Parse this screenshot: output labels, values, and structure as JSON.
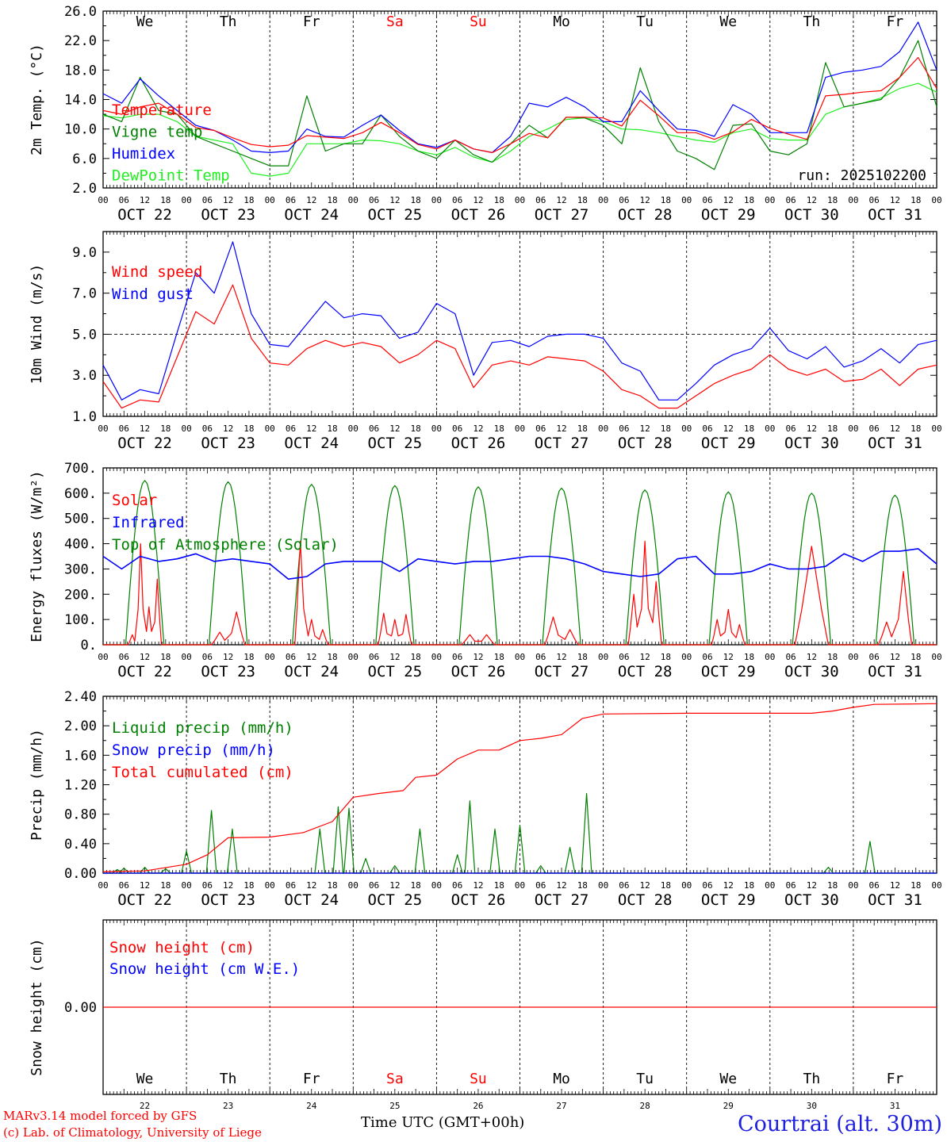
{
  "colors": {
    "red": "#ff0000",
    "green": "#008000",
    "blue": "#0000ff",
    "lightgreen": "#22ee22",
    "black": "#000000"
  },
  "footer": {
    "model": "MARv3.14 model forced by GFS",
    "copyright": "(c) Lab. of Climatology, University of Liege",
    "time_label": "Time UTC (GMT+00h)",
    "station": "Courtrai (alt. 30m)"
  },
  "chart_data": [
    {
      "id": "temp",
      "type": "line",
      "ylabel": "2m Temp. (°C)",
      "ylim": [
        2,
        26
      ],
      "yticks": [
        "2.0",
        "6.0",
        "10.0",
        "14.0",
        "18.0",
        "22.0",
        "26.0"
      ],
      "annotation": "run: 2025102200",
      "legend": [
        {
          "text": "Temperature",
          "color": "#ff0000"
        },
        {
          "text": "Vigne temp",
          "color": "#008000"
        },
        {
          "text": "Humidex",
          "color": "#0000ff"
        },
        {
          "text": "DewPoint Temp",
          "color": "#22ee22"
        }
      ],
      "series_points_per_day": 4,
      "series": [
        {
          "name": "Temperature",
          "color": "#ff0000",
          "values": [
            12.5,
            12,
            13,
            13.5,
            12,
            10.2,
            9.8,
            8.8,
            7.9,
            7.6,
            7.8,
            9.1,
            8.9,
            8.7,
            9.5,
            10.9,
            9.5,
            7.9,
            7.3,
            8.5,
            7.3,
            6.8,
            8,
            9.4,
            8.8,
            11.6,
            11.6,
            11.5,
            10.4,
            13.9,
            11.8,
            9.5,
            9.5,
            8.6,
            9.6,
            11.3,
            10.1,
            9.3,
            8.6,
            14.5,
            14.7,
            15,
            15.2,
            17,
            19.7,
            15.5
          ]
        },
        {
          "name": "Vigne temp",
          "color": "#008000",
          "values": [
            12,
            11,
            17,
            12.5,
            12,
            9,
            8,
            7,
            6,
            5,
            5,
            14.5,
            7,
            8,
            8,
            11.9,
            9,
            7,
            6,
            8.5,
            6.5,
            5.5,
            8,
            10.5,
            8.8,
            11.6,
            11.5,
            10.5,
            8,
            18.3,
            11,
            7,
            6,
            4.5,
            10.5,
            10.7,
            7,
            6.5,
            8,
            19,
            13,
            13.5,
            14,
            17,
            22,
            13
          ]
        },
        {
          "name": "Humidex",
          "color": "#0000ff",
          "values": [
            14.8,
            13.5,
            16.8,
            14.5,
            12.5,
            10.5,
            9.8,
            8.5,
            7,
            6.8,
            7,
            10,
            9,
            8.9,
            10.5,
            11.9,
            9.8,
            8,
            7.5,
            8.5,
            7.3,
            6.8,
            9,
            13.5,
            13,
            14.3,
            13,
            11,
            11,
            15.2,
            12.5,
            10,
            9.8,
            9,
            13.3,
            12,
            9.5,
            9.5,
            9.5,
            17,
            17.7,
            18,
            18.5,
            20.5,
            24.5,
            18
          ]
        },
        {
          "name": "DewPoint Temp",
          "color": "#22ee22",
          "values": [
            11.8,
            11.5,
            12,
            12,
            11,
            9,
            8.5,
            8,
            4,
            3.6,
            4,
            8,
            8,
            8,
            8.5,
            8.4,
            8,
            7,
            6.5,
            7.5,
            6.2,
            5.5,
            7,
            9,
            10,
            11.3,
            11.5,
            11,
            10,
            9.9,
            9.5,
            9,
            8.5,
            8.2,
            9.5,
            10,
            8.7,
            8.5,
            8.5,
            12,
            13,
            13.5,
            14.2,
            15.5,
            16.2,
            15
          ]
        }
      ]
    },
    {
      "id": "wind",
      "type": "line",
      "ylabel": "10m Wind (m/s)",
      "ylim": [
        1,
        10
      ],
      "yticks": [
        "1.0",
        "3.0",
        "5.0",
        "7.0",
        "9.0"
      ],
      "reference_line": 5,
      "legend": [
        {
          "text": "Wind speed",
          "color": "#ff0000"
        },
        {
          "text": "Wind gust",
          "color": "#0000ff"
        }
      ],
      "series_points_per_day": 4,
      "series": [
        {
          "name": "Wind speed",
          "color": "#ff0000",
          "values": [
            2.7,
            1.4,
            1.8,
            1.7,
            3.9,
            6.1,
            5.5,
            7.4,
            4.8,
            3.6,
            3.5,
            4.3,
            4.7,
            4.4,
            4.6,
            4.4,
            3.6,
            4,
            4.7,
            4.3,
            2.4,
            3.5,
            3.7,
            3.5,
            3.9,
            3.8,
            3.7,
            3.2,
            2.3,
            2,
            1.4,
            1.4,
            2,
            2.6,
            3,
            3.3,
            4,
            3.3,
            3,
            3.3,
            2.7,
            2.8,
            3.3,
            2.5,
            3.3,
            3.5
          ]
        },
        {
          "name": "Wind gust",
          "color": "#0000ff",
          "values": [
            3.5,
            1.8,
            2.3,
            2.1,
            5.1,
            8,
            7,
            9.5,
            6,
            4.5,
            4.4,
            5.5,
            6.6,
            5.8,
            6,
            5.9,
            4.8,
            5.1,
            6.5,
            6,
            3,
            4.6,
            4.7,
            4.4,
            4.9,
            5,
            5,
            4.8,
            3.6,
            3.2,
            1.8,
            1.8,
            2.6,
            3.5,
            4,
            4.3,
            5.3,
            4.2,
            3.8,
            4.4,
            3.4,
            3.7,
            4.3,
            3.6,
            4.5,
            4.7
          ]
        }
      ]
    },
    {
      "id": "energy",
      "type": "line",
      "ylabel": "Energy fluxes (W/m²)",
      "ylim": [
        0,
        700
      ],
      "yticks": [
        "0.",
        "100.",
        "200.",
        "300.",
        "400.",
        "500.",
        "600.",
        "700."
      ],
      "legend": [
        {
          "text": "Solar",
          "color": "#ff0000"
        },
        {
          "text": "Infrared",
          "color": "#0000ff"
        },
        {
          "text": "Top of Atmosphere (Solar)",
          "color": "#008000"
        }
      ],
      "infrared": {
        "name": "Infrared",
        "color": "#0000ff",
        "values": [
          350,
          300,
          350,
          330,
          340,
          360,
          330,
          340,
          330,
          320,
          260,
          270,
          320,
          330,
          330,
          330,
          290,
          340,
          330,
          320,
          330,
          330,
          340,
          350,
          350,
          340,
          320,
          290,
          280,
          270,
          280,
          340,
          350,
          280,
          280,
          290,
          320,
          300,
          300,
          310,
          360,
          330,
          370,
          370,
          380,
          320
        ]
      },
      "toa": {
        "name": "Top of Atmosphere (Solar)",
        "color": "#008000",
        "peaks": [
          650,
          645,
          635,
          630,
          625,
          620,
          613,
          605,
          600,
          592
        ]
      },
      "solar": {
        "name": "Solar",
        "color": "#ff0000",
        "peaks": [
          [
            40,
            400,
            150,
            260
          ],
          [
            50,
            130
          ],
          [
            410,
            100,
            60
          ],
          [
            125,
            100,
            120
          ],
          [
            40,
            40
          ],
          [
            110,
            60
          ],
          [
            200,
            410,
            250
          ],
          [
            100,
            140,
            80
          ],
          [
            390
          ],
          [
            90,
            290
          ]
        ]
      }
    },
    {
      "id": "precip",
      "type": "line",
      "ylabel": "Precip (mm/h)",
      "ylim": [
        0,
        2.4
      ],
      "yticks": [
        "0.00",
        "0.40",
        "0.80",
        "1.20",
        "1.60",
        "2.00",
        "2.40"
      ],
      "legend": [
        {
          "text": "Liquid precip (mm/h)",
          "color": "#008000"
        },
        {
          "text": "Snow precip (mm/h)",
          "color": "#0000ff"
        },
        {
          "text": "Total cumulated (cm)",
          "color": "#ff0000"
        }
      ],
      "liquid_events": [
        [
          0.17,
          0.05
        ],
        [
          0.25,
          0.07
        ],
        [
          0.5,
          0.08
        ],
        [
          0.75,
          0.06
        ],
        [
          1.0,
          0.3
        ],
        [
          1.3,
          0.85
        ],
        [
          1.55,
          0.6
        ],
        [
          2.6,
          0.6
        ],
        [
          2.82,
          0.9
        ],
        [
          2.95,
          0.88
        ],
        [
          3.15,
          0.2
        ],
        [
          3.5,
          0.1
        ],
        [
          3.8,
          0.6
        ],
        [
          4.25,
          0.25
        ],
        [
          4.4,
          0.98
        ],
        [
          4.7,
          0.6
        ],
        [
          5.0,
          0.65
        ],
        [
          5.25,
          0.1
        ],
        [
          5.6,
          0.35
        ],
        [
          5.8,
          1.08
        ],
        [
          8.7,
          0.08
        ],
        [
          9.2,
          0.43
        ]
      ],
      "cumulative": {
        "name": "Total cumulated (cm)",
        "color": "#ff0000",
        "x_days": [
          0,
          0.5,
          1.0,
          1.25,
          1.5,
          2.0,
          2.4,
          2.75,
          3.0,
          3.3,
          3.6,
          3.75,
          4.0,
          4.25,
          4.5,
          4.75,
          5.0,
          5.25,
          5.5,
          5.75,
          6.0,
          7.0,
          8.0,
          8.5,
          8.75,
          9.0,
          9.25,
          10.0
        ],
        "values": [
          0.02,
          0.03,
          0.12,
          0.25,
          0.48,
          0.49,
          0.55,
          0.7,
          1.03,
          1.08,
          1.12,
          1.3,
          1.33,
          1.55,
          1.67,
          1.67,
          1.8,
          1.83,
          1.88,
          2.1,
          2.16,
          2.17,
          2.17,
          2.17,
          2.2,
          2.25,
          2.29,
          2.3
        ]
      }
    },
    {
      "id": "snow",
      "type": "line",
      "ylabel": "Snow height (cm)",
      "ytick": "0.00",
      "legend": [
        {
          "text": "Snow height (cm)",
          "color": "#ff0000"
        },
        {
          "text": "Snow height (cm W.E.)",
          "color": "#0000ff"
        }
      ],
      "series": [
        {
          "name": "Snow height (cm)",
          "color": "#ff0000",
          "values": [
            0,
            0
          ]
        }
      ]
    }
  ],
  "days": {
    "weekdays": [
      "We",
      "Th",
      "Fr",
      "Sa",
      "Su",
      "Mo",
      "Tu",
      "We",
      "Th",
      "Fr"
    ],
    "weekday_colors": [
      "#000000",
      "#000000",
      "#000000",
      "#ff0000",
      "#ff0000",
      "#000000",
      "#000000",
      "#000000",
      "#000000",
      "#000000"
    ],
    "dates": [
      "OCT 22",
      "OCT 23",
      "OCT 24",
      "OCT 25",
      "OCT 26",
      "OCT 27",
      "OCT 28",
      "OCT 29",
      "OCT 30",
      "OCT 31"
    ],
    "day_numbers": [
      "22",
      "23",
      "24",
      "25",
      "26",
      "27",
      "28",
      "29",
      "30",
      "31"
    ],
    "hour_labels": [
      "00",
      "06",
      "12",
      "18"
    ],
    "end_hour_label": "00"
  }
}
